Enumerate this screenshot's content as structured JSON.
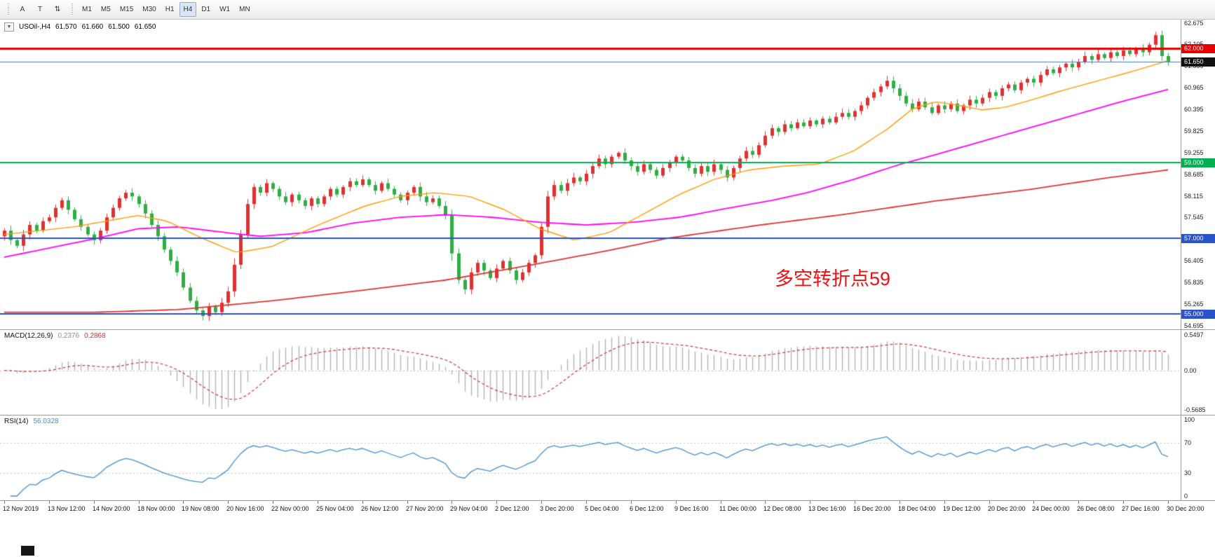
{
  "toolbar": {
    "tools": [
      {
        "name": "font-tool",
        "label": "A"
      },
      {
        "name": "text-tool",
        "label": "T"
      },
      {
        "name": "arrows-tool",
        "label": "⇅"
      }
    ],
    "timeframes": [
      "M1",
      "M5",
      "M15",
      "M30",
      "H1",
      "H4",
      "D1",
      "W1",
      "MN"
    ],
    "active_timeframe": "H4"
  },
  "header": {
    "dropdown_glyph": "▼",
    "symbol_period": "USOil-,H4",
    "open": "61.570",
    "high": "61.660",
    "low": "61.500",
    "close": "61.650"
  },
  "annotation": {
    "text": "多空转折点59",
    "color": "#ee1111"
  },
  "price_scale": {
    "ticks": [
      "62.675",
      "62.105",
      "61.535",
      "60.965",
      "60.395",
      "59.825",
      "59.255",
      "58.685",
      "58.115",
      "57.545",
      "56.975",
      "56.405",
      "55.835",
      "55.265",
      "54.695"
    ]
  },
  "hlines": [
    {
      "price": 62.0,
      "label": "62.000",
      "color": "#e60000",
      "width": 3,
      "badge_bg": "#e60000"
    },
    {
      "price": 61.65,
      "label": "61.650",
      "color": "#4a7ebc",
      "width": 1,
      "badge_bg": "#101010"
    },
    {
      "price": 59.0,
      "label": "59.000",
      "color": "#00b050",
      "width": 2,
      "badge_bg": "#00b050"
    },
    {
      "price": 57.0,
      "label": "57.000",
      "color": "#2a52cc",
      "width": 2,
      "badge_bg": "#2a52cc"
    },
    {
      "price": 55.0,
      "label": "55.000",
      "color": "#2a52cc",
      "width": 2,
      "badge_bg": "#2a52cc"
    }
  ],
  "macd_panel": {
    "label": "MACD(12,26,9)",
    "value_main": "0.2376",
    "value_signal": "0.2868",
    "axis_top": "0.5497",
    "axis_zero": "0.00",
    "axis_bottom": "-0.5685"
  },
  "rsi_panel": {
    "label": "RSI(14)",
    "value": "56.0328",
    "axis": [
      "100",
      "70",
      "30",
      "0"
    ]
  },
  "chart_data": {
    "type": "candlestick",
    "symbol": "USOil-",
    "timeframe": "H4",
    "current_ohlc": [
      61.57,
      61.66,
      61.5,
      61.65
    ],
    "ylim": [
      54.6,
      62.76
    ],
    "up_color": "#e03030",
    "down_color": "#2fae45",
    "label_every": 7,
    "x_labels": [
      "12 Nov 2019",
      "13 Nov 12:00",
      "14 Nov 20:00",
      "18 Nov 00:00",
      "19 Nov 08:00",
      "20 Nov 16:00",
      "22 Nov 00:00",
      "25 Nov 04:00",
      "26 Nov 12:00",
      "27 Nov 20:00",
      "29 Nov 04:00",
      "2 Dec 12:00",
      "3 Dec 20:00",
      "5 Dec 04:00",
      "6 Dec 12:00",
      "9 Dec 16:00",
      "11 Dec 00:00",
      "12 Dec 08:00",
      "13 Dec 16:00",
      "16 Dec 20:00",
      "18 Dec 04:00",
      "19 Dec 12:00",
      "20 Dec 20:00",
      "24 Dec 00:00",
      "26 Dec 08:00",
      "27 Dec 16:00",
      "30 Dec 20:00"
    ],
    "closes": [
      57.2,
      56.95,
      56.8,
      57.1,
      57.35,
      57.2,
      57.45,
      57.55,
      57.8,
      58.0,
      57.75,
      57.5,
      57.3,
      57.1,
      56.95,
      57.2,
      57.55,
      57.8,
      58.05,
      58.2,
      58.1,
      57.9,
      57.65,
      57.35,
      57.05,
      56.7,
      56.4,
      56.1,
      55.7,
      55.35,
      55.1,
      54.95,
      55.2,
      55.05,
      55.3,
      55.6,
      56.3,
      57.1,
      57.9,
      58.35,
      58.2,
      58.45,
      58.3,
      58.1,
      57.95,
      58.15,
      58.0,
      57.85,
      58.05,
      57.9,
      58.1,
      58.3,
      58.15,
      58.35,
      58.5,
      58.4,
      58.55,
      58.4,
      58.25,
      58.45,
      58.3,
      58.15,
      58.0,
      58.2,
      58.35,
      58.1,
      57.95,
      58.05,
      57.85,
      57.6,
      56.6,
      55.9,
      55.65,
      56.1,
      56.35,
      56.15,
      55.95,
      56.2,
      56.4,
      56.15,
      55.9,
      56.1,
      56.35,
      56.55,
      57.3,
      58.1,
      58.4,
      58.25,
      58.45,
      58.6,
      58.5,
      58.7,
      58.9,
      59.1,
      58.95,
      59.15,
      59.25,
      59.05,
      58.9,
      58.75,
      58.95,
      58.8,
      58.65,
      58.85,
      59.0,
      59.15,
      59.05,
      58.85,
      58.7,
      58.9,
      58.75,
      58.95,
      58.8,
      58.6,
      58.85,
      59.1,
      59.3,
      59.2,
      59.45,
      59.7,
      59.9,
      59.8,
      60.0,
      59.9,
      60.05,
      59.95,
      60.1,
      60.0,
      60.15,
      60.05,
      60.2,
      60.3,
      60.2,
      60.35,
      60.5,
      60.7,
      60.85,
      61.0,
      61.15,
      60.95,
      60.75,
      60.55,
      60.4,
      60.6,
      60.45,
      60.3,
      60.5,
      60.4,
      60.55,
      60.35,
      60.5,
      60.65,
      60.55,
      60.7,
      60.85,
      60.75,
      60.95,
      61.05,
      60.9,
      61.1,
      61.2,
      61.1,
      61.3,
      61.45,
      61.35,
      61.5,
      61.6,
      61.5,
      61.65,
      61.8,
      61.7,
      61.85,
      61.75,
      61.9,
      61.8,
      61.95,
      61.85,
      62.0,
      61.9,
      62.1,
      62.35,
      61.8,
      61.65
    ],
    "moving_averages": [
      {
        "name": "ma-slow-red",
        "color": "#e03333",
        "width": 1.8,
        "points": [
          [
            0.0,
            55.05
          ],
          [
            0.08,
            55.05
          ],
          [
            0.15,
            55.12
          ],
          [
            0.23,
            55.35
          ],
          [
            0.3,
            55.6
          ],
          [
            0.38,
            55.9
          ],
          [
            0.45,
            56.28
          ],
          [
            0.52,
            56.68
          ],
          [
            0.57,
            57.0
          ],
          [
            0.65,
            57.35
          ],
          [
            0.72,
            57.62
          ],
          [
            0.8,
            57.98
          ],
          [
            0.88,
            58.28
          ],
          [
            0.95,
            58.6
          ],
          [
            1.0,
            58.8
          ]
        ]
      },
      {
        "name": "ma-mid-magenta",
        "color": "#ff00ff",
        "width": 1.8,
        "points": [
          [
            0.0,
            56.5
          ],
          [
            0.04,
            56.75
          ],
          [
            0.08,
            57.0
          ],
          [
            0.115,
            57.25
          ],
          [
            0.15,
            57.3
          ],
          [
            0.19,
            57.15
          ],
          [
            0.22,
            57.05
          ],
          [
            0.26,
            57.15
          ],
          [
            0.3,
            57.4
          ],
          [
            0.34,
            57.55
          ],
          [
            0.38,
            57.62
          ],
          [
            0.42,
            57.55
          ],
          [
            0.46,
            57.42
          ],
          [
            0.5,
            57.35
          ],
          [
            0.54,
            57.42
          ],
          [
            0.58,
            57.55
          ],
          [
            0.62,
            57.78
          ],
          [
            0.66,
            58.0
          ],
          [
            0.69,
            58.2
          ],
          [
            0.73,
            58.55
          ],
          [
            0.77,
            58.95
          ],
          [
            0.8,
            59.2
          ],
          [
            0.84,
            59.55
          ],
          [
            0.88,
            59.9
          ],
          [
            0.92,
            60.25
          ],
          [
            0.96,
            60.6
          ],
          [
            1.0,
            60.92
          ]
        ]
      },
      {
        "name": "ma-fast-orange",
        "color": "#ff9c00",
        "width": 1.4,
        "points": [
          [
            0.0,
            57.1
          ],
          [
            0.06,
            57.3
          ],
          [
            0.115,
            57.6
          ],
          [
            0.14,
            57.45
          ],
          [
            0.17,
            57.0
          ],
          [
            0.2,
            56.62
          ],
          [
            0.23,
            56.78
          ],
          [
            0.27,
            57.35
          ],
          [
            0.31,
            57.85
          ],
          [
            0.34,
            58.1
          ],
          [
            0.37,
            58.2
          ],
          [
            0.4,
            58.1
          ],
          [
            0.43,
            57.75
          ],
          [
            0.46,
            57.25
          ],
          [
            0.49,
            56.95
          ],
          [
            0.52,
            57.15
          ],
          [
            0.55,
            57.65
          ],
          [
            0.58,
            58.15
          ],
          [
            0.61,
            58.55
          ],
          [
            0.64,
            58.8
          ],
          [
            0.67,
            58.9
          ],
          [
            0.7,
            58.95
          ],
          [
            0.73,
            59.3
          ],
          [
            0.76,
            59.9
          ],
          [
            0.78,
            60.4
          ],
          [
            0.8,
            60.6
          ],
          [
            0.82,
            60.5
          ],
          [
            0.84,
            60.38
          ],
          [
            0.86,
            60.45
          ],
          [
            0.88,
            60.62
          ],
          [
            0.91,
            60.9
          ],
          [
            0.94,
            61.15
          ],
          [
            0.97,
            61.4
          ],
          [
            1.0,
            61.68
          ]
        ]
      }
    ],
    "indicators": {
      "macd": {
        "fast": 12,
        "slow": 26,
        "signal": 9,
        "current": [
          0.2376,
          0.2868
        ],
        "hist_color": "#b4b4b4",
        "signal_color": "#d23434"
      },
      "rsi": {
        "period": 14,
        "current": 56.0328,
        "color": "#3f8fd2",
        "levels": [
          70,
          30
        ]
      }
    }
  }
}
